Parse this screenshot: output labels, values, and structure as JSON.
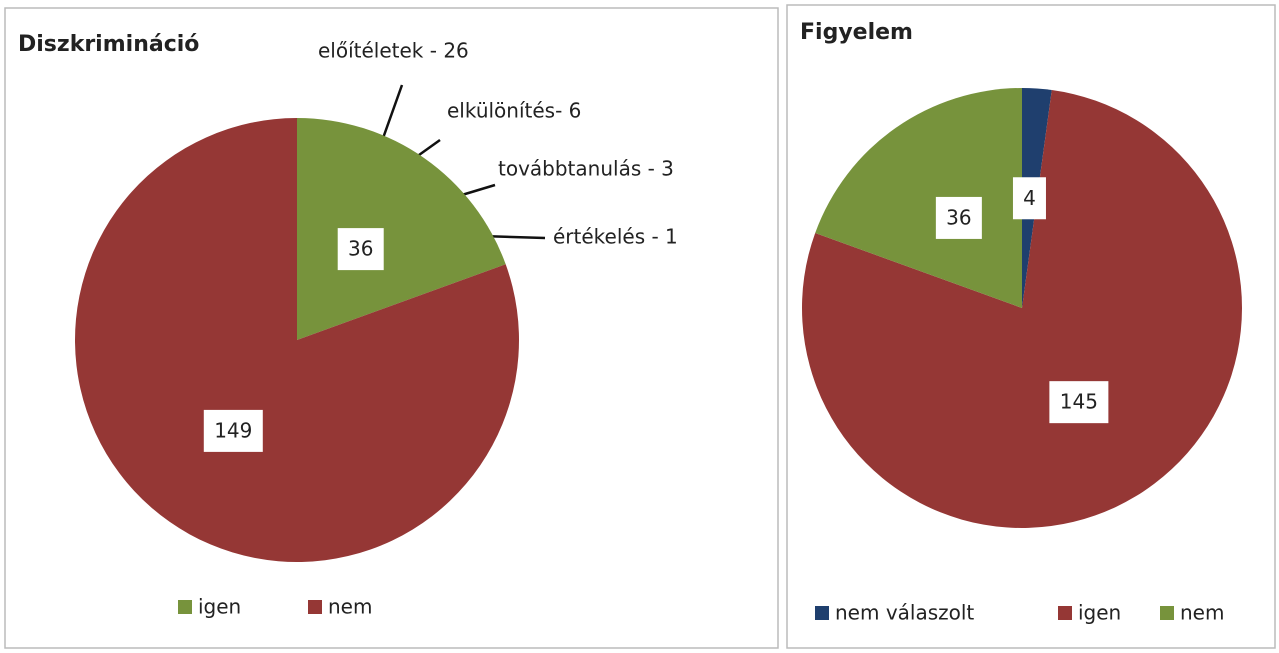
{
  "chart_data": [
    {
      "type": "pie",
      "title": "Diszkrimináció",
      "categories": [
        "igen",
        "nem"
      ],
      "values": [
        36,
        149
      ],
      "colors": [
        "#77933c",
        "#953735"
      ],
      "annotations": [
        "előítéletek  - 26",
        "elkülönítés- 6",
        "továbbtanulás - 3",
        "értékelés  - 1"
      ]
    },
    {
      "type": "pie",
      "title": "Figyelem",
      "categories": [
        "nem válaszolt",
        "igen",
        "nem"
      ],
      "values": [
        4,
        145,
        36
      ],
      "colors": [
        "#1f3f6e",
        "#953735",
        "#77933c"
      ]
    }
  ]
}
